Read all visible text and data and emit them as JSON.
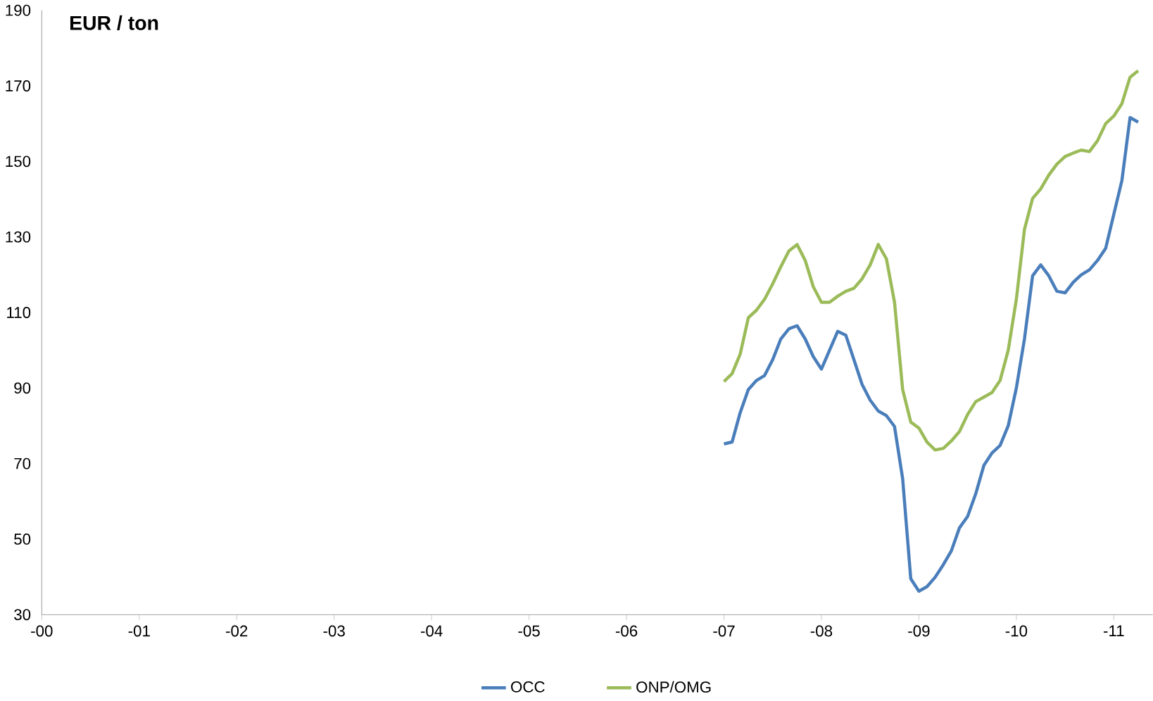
{
  "chart_data": {
    "type": "line",
    "ylabel": "EUR / ton",
    "xlim": [
      "2000-01-01",
      "2011-05-25"
    ],
    "ylim": [
      30,
      190
    ],
    "xticks": [
      {
        "value": "2000",
        "label": "-00"
      },
      {
        "value": "2001",
        "label": "-01"
      },
      {
        "value": "2002",
        "label": "-02"
      },
      {
        "value": "2003",
        "label": "-03"
      },
      {
        "value": "2004",
        "label": "-04"
      },
      {
        "value": "2005",
        "label": "-05"
      },
      {
        "value": "2006",
        "label": "-06"
      },
      {
        "value": "2007",
        "label": "-07"
      },
      {
        "value": "2008",
        "label": "-08"
      },
      {
        "value": "2009",
        "label": "-09"
      },
      {
        "value": "2010",
        "label": "-10"
      },
      {
        "value": "2011",
        "label": "-11"
      }
    ],
    "yticks": [
      30,
      50,
      70,
      90,
      110,
      130,
      150,
      170,
      190
    ],
    "grid": false,
    "legend": "bottom",
    "marker": "none",
    "line_style": "solid",
    "x": [
      "2007-01",
      "2007-02",
      "2007-03",
      "2007-04",
      "2007-05",
      "2007-06",
      "2007-07",
      "2007-08",
      "2007-09",
      "2007-10",
      "2007-11",
      "2007-12",
      "2008-01",
      "2008-02",
      "2008-03",
      "2008-04",
      "2008-05",
      "2008-06",
      "2008-07",
      "2008-08",
      "2008-09",
      "2008-10",
      "2008-11",
      "2008-12",
      "2009-01",
      "2009-02",
      "2009-03",
      "2009-04",
      "2009-05",
      "2009-06",
      "2009-07",
      "2009-08",
      "2009-09",
      "2009-10",
      "2009-11",
      "2009-12",
      "2010-01",
      "2010-02",
      "2010-03",
      "2010-04",
      "2010-05",
      "2010-06",
      "2010-07",
      "2010-08",
      "2010-09",
      "2010-10",
      "2010-11",
      "2010-12",
      "2011-01",
      "2011-02",
      "2011-03",
      "2011-04"
    ],
    "series": [
      {
        "name": "OCC",
        "color": "#4a7ebb",
        "values": [
          75.2,
          75.7,
          83.5,
          89.6,
          92,
          93.3,
          97.5,
          103,
          105.7,
          106.5,
          103,
          98.3,
          95,
          100,
          105,
          104,
          97.5,
          91,
          86.8,
          83.9,
          82.7,
          79.8,
          66,
          39.5,
          36.2,
          37.4,
          39.9,
          43.2,
          46.9,
          53,
          56,
          62,
          69.5,
          72.8,
          74.8,
          80,
          90,
          103,
          119.7,
          122.6,
          119.7,
          115.6,
          115.2,
          118,
          120,
          121.3,
          123.8,
          127,
          136,
          145,
          161.6,
          160.4
        ]
      },
      {
        "name": "ONP/OMG",
        "color": "#9bbb59",
        "values": [
          91.7,
          93.8,
          99,
          108.6,
          110.6,
          113.5,
          117.6,
          122.1,
          126.3,
          128,
          123.8,
          116.8,
          112.7,
          112.7,
          114.3,
          115.6,
          116.4,
          118.9,
          122.6,
          128,
          124.2,
          112.7,
          89.6,
          81,
          79.4,
          75.7,
          73.6,
          74,
          76,
          78.5,
          83,
          86.4,
          87.6,
          88.8,
          92,
          100,
          113.5,
          132,
          140.2,
          142.7,
          146.4,
          149.3,
          151.3,
          152.2,
          153,
          152.6,
          155.5,
          160,
          162,
          165.3,
          172.3,
          174
        ]
      }
    ]
  }
}
